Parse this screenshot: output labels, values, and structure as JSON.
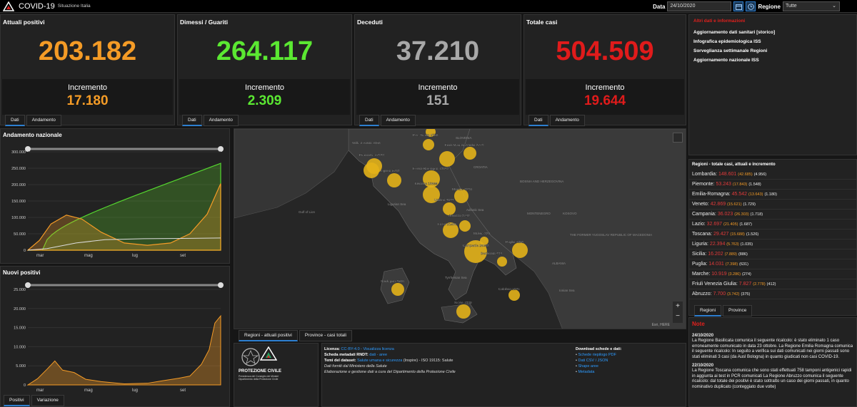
{
  "header": {
    "title": "COVID-19",
    "subtitle": "Situazione Italia",
    "data_label": "Data",
    "date": "24/10/2020",
    "regione_label": "Regione",
    "regione": "Tutte"
  },
  "kpis": [
    {
      "title": "Attuali positivi",
      "value": "203.182",
      "inc_label": "Incremento",
      "inc": "17.180",
      "color": "#f49b26"
    },
    {
      "title": "Dimessi / Guariti",
      "value": "264.117",
      "inc_label": "Incremento",
      "inc": "2.309",
      "color": "#5be832"
    },
    {
      "title": "Deceduti",
      "value": "37.210",
      "inc_label": "Incremento",
      "inc": "151",
      "color": "#a8a8a8"
    },
    {
      "title": "Totale casi",
      "value": "504.509",
      "inc_label": "Incremento",
      "inc": "19.644",
      "color": "#e01b1b"
    }
  ],
  "kpi_tabs": [
    "Dati",
    "Andamento"
  ],
  "links": {
    "heading": "Altri dati e informazioni",
    "items": [
      "Aggiornamento dati sanitari [storico]",
      "Infografica epidemiologica ISS",
      "Sorveglianza settimanale Regioni",
      "Aggiornamento nazionale ISS"
    ]
  },
  "trend": {
    "title": "Andamento nazionale",
    "yticks": [
      "300.000",
      "250.000",
      "200.000",
      "150.000",
      "100.000",
      "50.000",
      "0"
    ],
    "xticks": [
      "mar",
      "mag",
      "lug",
      "set"
    ]
  },
  "new": {
    "title": "Nuovi positivi",
    "yticks": [
      "25.000",
      "20.000",
      "15.000",
      "10.000",
      "5.000",
      "0"
    ],
    "xticks": [
      "mar",
      "mag",
      "lug",
      "set"
    ],
    "tabs": [
      "Positivi",
      "Variazione"
    ]
  },
  "map": {
    "tabs": [
      "Regioni - attuali positivi",
      "Province - casi totali"
    ],
    "attribution": "Esri, HERE",
    "labels": [
      "P.A. Trento 2756",
      "Friuli Venezia Giulia 2778",
      "Valle d'Aosta 1056",
      "Piemonte 17843",
      "Liguria 5763",
      "Emilia-Romagna 13643",
      "Toscana 15688",
      "Marche 3286",
      "Umbria 4044",
      "Abruzzo 3742",
      "Lazio 21405",
      "Molise 329",
      "Campania 26303",
      "Basilicata 484",
      "Puglia 7398",
      "Sardegna 4506",
      "Calabria 1841",
      "Sicilia 7889"
    ],
    "geo": [
      "SLOVENIA",
      "CROATIA",
      "BOSNIA AND HERZEGOVINA",
      "MONTENEGRO",
      "KOSOVO",
      "THE FORMER YUGOSLAV REPUBLIC OF MACEDONIA",
      "ALBANIA",
      "Gulf of Lion",
      "Ligurian Sea",
      "Adriatic Sea",
      "Tyrrhenian Sea",
      "Ionian Sea"
    ]
  },
  "regions": {
    "title": "Regioni - totale casi, attuali e incremento",
    "tabs": [
      "Regioni",
      "Province"
    ],
    "rows": [
      {
        "name": "Lombardia:",
        "tot": "148.601",
        "att": "(42.685)",
        "inc": "(4.956)"
      },
      {
        "name": "Piemonte:",
        "tot": "53.243",
        "att": "(17.843)",
        "inc": "(1.548)"
      },
      {
        "name": "Emilia-Romagna:",
        "tot": "45.542",
        "att": "(13.643)",
        "inc": "(1.180)"
      },
      {
        "name": "Veneto:",
        "tot": "42.869",
        "att": "(15.621)",
        "inc": "(1.729)"
      },
      {
        "name": "Campania:",
        "tot": "36.023",
        "att": "(26.303)",
        "inc": "(1.718)"
      },
      {
        "name": "Lazio:",
        "tot": "32.697",
        "att": "(21.405)",
        "inc": "(1.687)"
      },
      {
        "name": "Toscana:",
        "tot": "29.427",
        "att": "(15.688)",
        "inc": "(1.526)"
      },
      {
        "name": "Liguria:",
        "tot": "22.394",
        "att": "(5.763)",
        "inc": "(1.035)"
      },
      {
        "name": "Sicilia:",
        "tot": "16.202",
        "att": "(7.889)",
        "inc": "(886)"
      },
      {
        "name": "Puglia:",
        "tot": "14.031",
        "att": "(7.398)",
        "inc": "(631)"
      },
      {
        "name": "Marche:",
        "tot": "10.919",
        "att": "(3.286)",
        "inc": "(274)"
      },
      {
        "name": "Friuli Venezia Giulia:",
        "tot": "7.827",
        "att": "(2.778)",
        "inc": "(412)"
      },
      {
        "name": "Abruzzo:",
        "tot": "7.700",
        "att": "(3.742)",
        "inc": "(375)"
      }
    ]
  },
  "notes": {
    "title": "Note",
    "d1": "24/10/2020",
    "t1": "La Regione Basilicata comunica il seguente ricalcolo: è stato eliminato 1 caso erroneamente comunicato in data 23 ottobre. La Regione Emilia Romagna comunica il seguente ricalcolo: In seguito a verifica sui dati comunicati nei giorni passati sono stati eliminati 3 casi (da Ausl Bologna) in quanto giudicati non casi COVID-19.",
    "d2": "22/10/2020",
    "t2": "La Regione Toscana comunica che sono stati effettuati 758 tamponi antigenici rapidi in aggiunta ai test in PCR comunicati La Regione Abruzzo comunica il seguente ricalcolo: dal totale dei positivi è stato sottratto un caso dei giorni passati, in quanto nominativo duplicato (conteggiato due volte)"
  },
  "footer": {
    "pc": "PROTEZIONE CIVILE",
    "pc_sub": "Presidenza del Consiglio dei Ministri Dipartimento della Protezione Civile",
    "licenza_l": "Licenza:",
    "licenza": "CC-BY-4.0 - Visualizza licenza",
    "scheda_l": "Scheda metadati RNDT:",
    "scheda": "dati - aree",
    "temi_l": "Temi del dataset:",
    "temi": "Salute umana e sicurezza",
    "temi2": "(Inspire) - ISO 19115: Salute",
    "fonti": "Dati forniti dal Ministero della Salute",
    "elab": "Elaborazione e gestione dati a cura del Dipartimento della Protezione Civile",
    "dl_title": "Download schede e dati:",
    "dl": [
      "Schede riepilogo PDF",
      "Dati CSV / JSON",
      "Shape aree",
      "Metadata"
    ]
  }
}
